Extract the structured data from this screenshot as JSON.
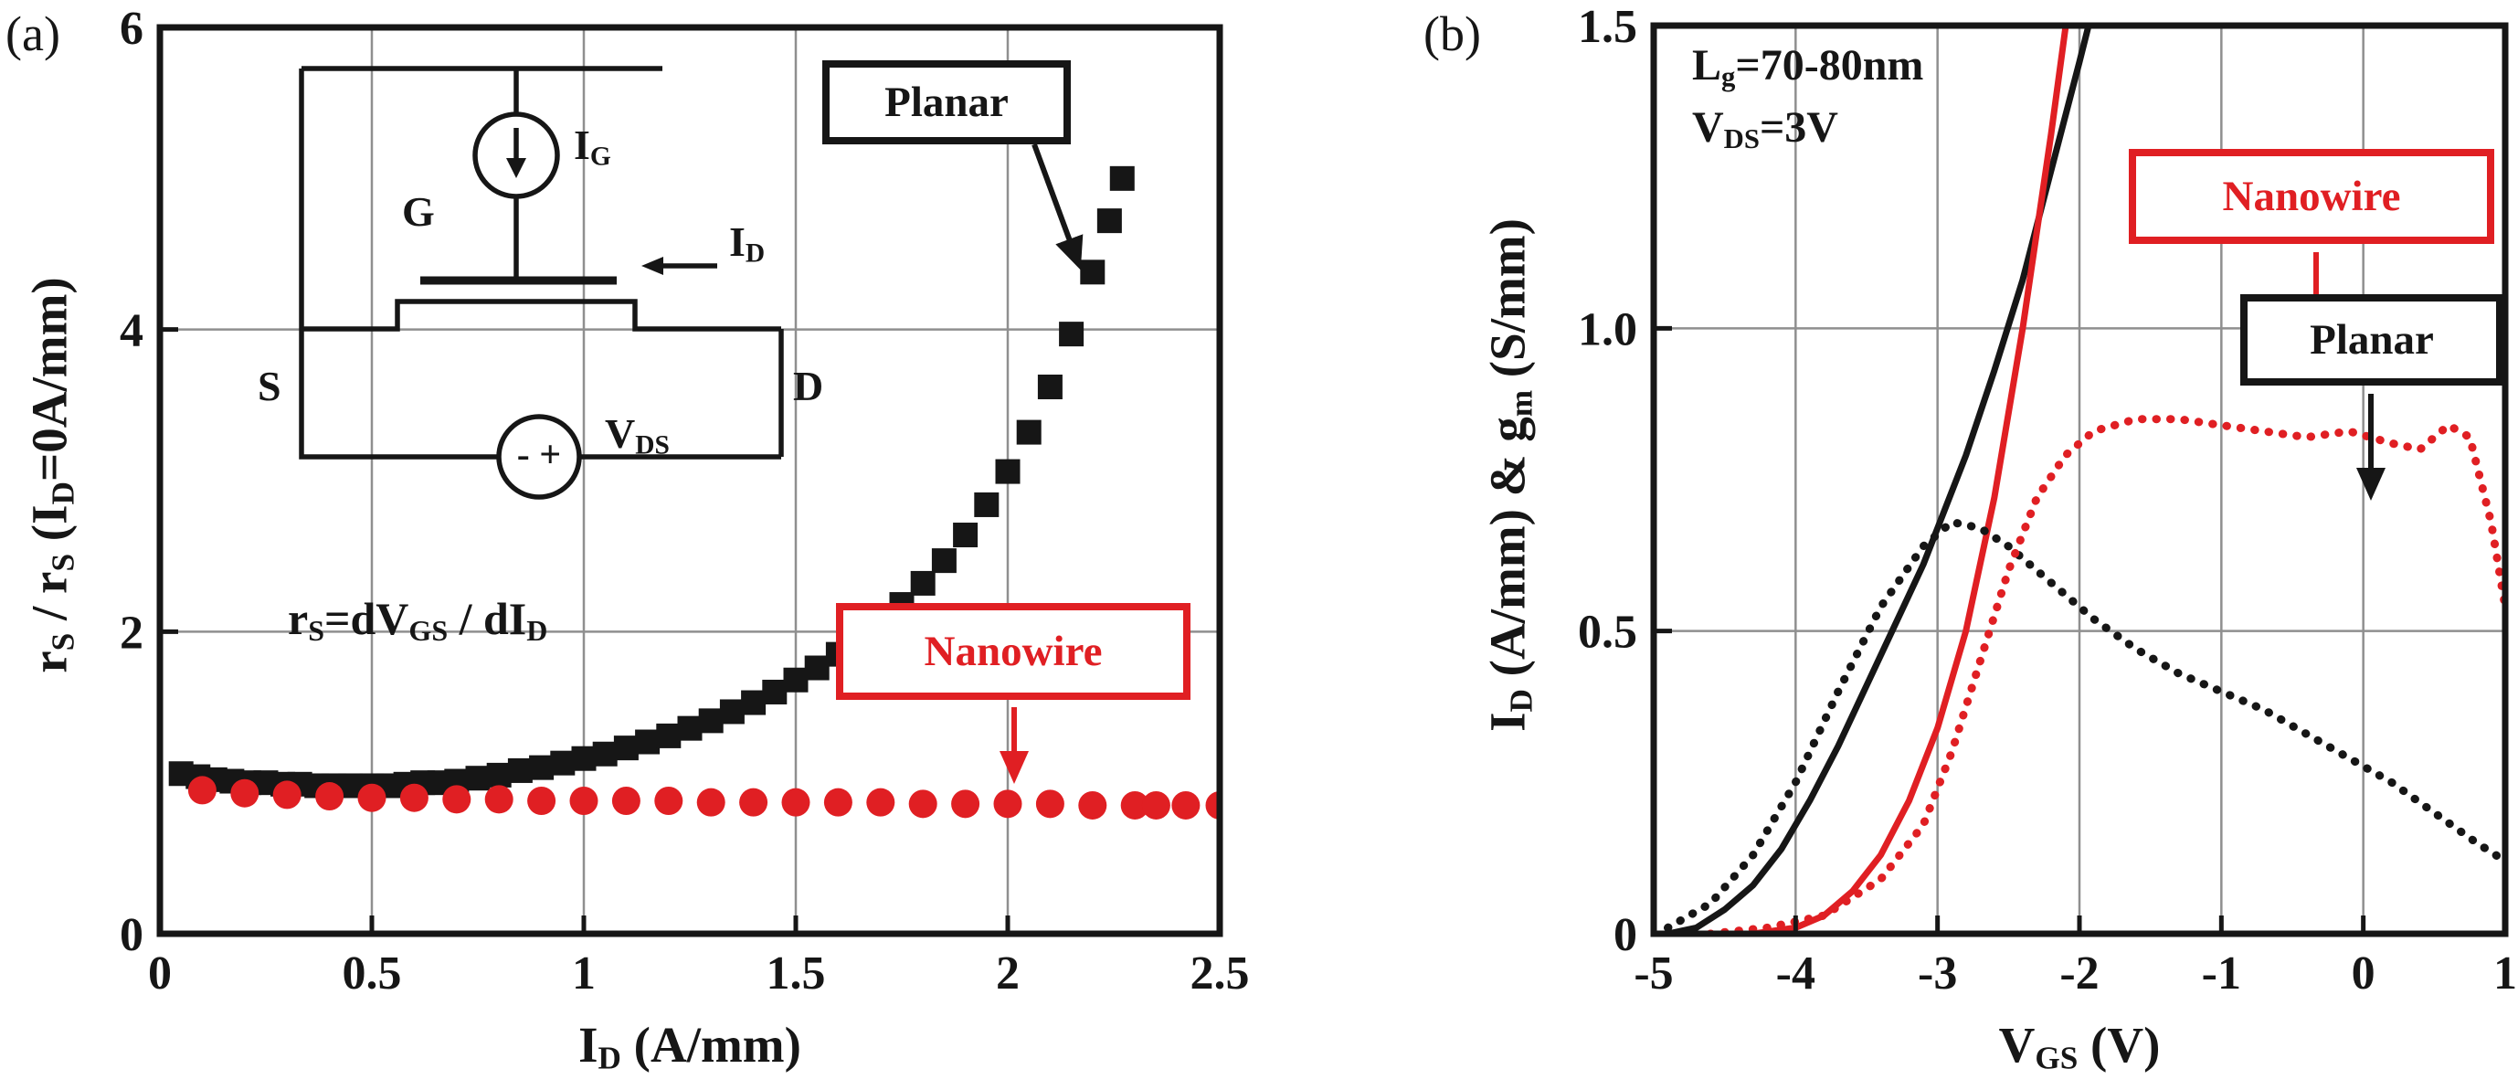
{
  "colors": {
    "black": "#161616",
    "red": "#e01f23",
    "grid": "#8f8f8f"
  },
  "figure": {
    "panel_a": {
      "tag": "(a)",
      "ylabel_parts": [
        [
          "r"
        ],
        [
          "S",
          "sub"
        ],
        [
          " / r"
        ],
        [
          "S",
          "sub"
        ],
        [
          " (I"
        ],
        [
          "D",
          "sub"
        ],
        [
          "=0A/mm)"
        ]
      ],
      "xlabel_parts": [
        [
          "I"
        ],
        [
          "D",
          "sub"
        ],
        [
          " (A/mm)"
        ]
      ],
      "equation_parts": [
        [
          "r"
        ],
        [
          "S",
          "sub"
        ],
        [
          "=dV"
        ],
        [
          "GS",
          "sub"
        ],
        [
          " / dI"
        ],
        [
          "D",
          "sub"
        ]
      ],
      "planar_label": "Planar",
      "nanowire_label": "Nanowire",
      "inset": {
        "ig_parts": [
          [
            "I"
          ],
          [
            "G",
            "sub"
          ]
        ],
        "gate_label": "G",
        "source_label": "S",
        "drain_label": "D",
        "id_parts": [
          [
            "I"
          ],
          [
            "D",
            "sub"
          ]
        ],
        "vds_parts": [
          [
            "V"
          ],
          [
            "DS",
            "sub"
          ]
        ],
        "polarity": "- +"
      }
    },
    "panel_b": {
      "tag": "(b)",
      "ylabel_parts": [
        [
          "I"
        ],
        [
          "D",
          "sub"
        ],
        [
          " (A/mm) & g"
        ],
        [
          "m",
          "sub"
        ],
        [
          " (S/mm)"
        ]
      ],
      "xlabel_parts": [
        [
          "V"
        ],
        [
          "GS",
          "sub"
        ],
        [
          " (V)"
        ]
      ],
      "ann1_parts": [
        [
          "L"
        ],
        [
          "g",
          "sub"
        ],
        [
          "=70-80nm"
        ]
      ],
      "ann2_parts": [
        [
          "V"
        ],
        [
          "DS",
          "sub"
        ],
        [
          "=3V"
        ]
      ],
      "planar_label": "Planar",
      "nanowire_label": "Nanowire"
    }
  },
  "chart_data": [
    {
      "type": "scatter",
      "title": "",
      "xlabel": "ID (A/mm)",
      "ylabel": "rS / rS (ID=0A/mm)",
      "xlim": [
        0,
        2.5
      ],
      "ylim": [
        0,
        6
      ],
      "xticks": [
        0,
        0.5,
        1,
        1.5,
        2,
        2.5
      ],
      "xtick_labels": [
        "0",
        "0.5",
        "1",
        "1.5",
        "2",
        "2.5"
      ],
      "yticks": [
        0,
        2,
        4,
        6
      ],
      "ytick_labels": [
        "0",
        "2",
        "4",
        "6"
      ],
      "grid": true,
      "annotation": "rS=dVGS / dID",
      "legend_position": "annotation-boxes",
      "series": [
        {
          "name": "Planar",
          "type": "scatter",
          "marker": "square",
          "color": "#161616",
          "size": 27,
          "points": [
            [
              0.05,
              1.06
            ],
            [
              0.09,
              1.04
            ],
            [
              0.13,
              1.02
            ],
            [
              0.17,
              1.01
            ],
            [
              0.21,
              1.0
            ],
            [
              0.25,
              1.0
            ],
            [
              0.29,
              0.99
            ],
            [
              0.33,
              0.99
            ],
            [
              0.37,
              0.98
            ],
            [
              0.41,
              0.98
            ],
            [
              0.45,
              0.98
            ],
            [
              0.5,
              0.98
            ],
            [
              0.54,
              0.98
            ],
            [
              0.58,
              0.99
            ],
            [
              0.62,
              1.0
            ],
            [
              0.66,
              1.0
            ],
            [
              0.7,
              1.01
            ],
            [
              0.75,
              1.03
            ],
            [
              0.8,
              1.05
            ],
            [
              0.85,
              1.08
            ],
            [
              0.9,
              1.1
            ],
            [
              0.95,
              1.13
            ],
            [
              1.0,
              1.16
            ],
            [
              1.05,
              1.19
            ],
            [
              1.1,
              1.23
            ],
            [
              1.15,
              1.27
            ],
            [
              1.2,
              1.31
            ],
            [
              1.25,
              1.36
            ],
            [
              1.3,
              1.41
            ],
            [
              1.35,
              1.47
            ],
            [
              1.4,
              1.53
            ],
            [
              1.45,
              1.6
            ],
            [
              1.5,
              1.68
            ],
            [
              1.55,
              1.76
            ],
            [
              1.6,
              1.85
            ],
            [
              1.65,
              1.95
            ],
            [
              1.7,
              2.06
            ],
            [
              1.75,
              2.18
            ],
            [
              1.8,
              2.32
            ],
            [
              1.85,
              2.47
            ],
            [
              1.9,
              2.64
            ],
            [
              1.95,
              2.84
            ],
            [
              2.0,
              3.06
            ],
            [
              2.05,
              3.32
            ],
            [
              2.1,
              3.62
            ],
            [
              2.15,
              3.97
            ],
            [
              2.2,
              4.38
            ],
            [
              2.24,
              4.72
            ],
            [
              2.27,
              5.0
            ]
          ]
        },
        {
          "name": "Nanowire",
          "type": "scatter",
          "marker": "circle",
          "color": "#e01f23",
          "size": 31,
          "points": [
            [
              0.1,
              0.95
            ],
            [
              0.2,
              0.93
            ],
            [
              0.3,
              0.92
            ],
            [
              0.4,
              0.91
            ],
            [
              0.5,
              0.9
            ],
            [
              0.6,
              0.9
            ],
            [
              0.7,
              0.89
            ],
            [
              0.8,
              0.89
            ],
            [
              0.9,
              0.88
            ],
            [
              1.0,
              0.88
            ],
            [
              1.1,
              0.88
            ],
            [
              1.2,
              0.88
            ],
            [
              1.3,
              0.87
            ],
            [
              1.4,
              0.87
            ],
            [
              1.5,
              0.87
            ],
            [
              1.6,
              0.87
            ],
            [
              1.7,
              0.87
            ],
            [
              1.8,
              0.86
            ],
            [
              1.9,
              0.86
            ],
            [
              2.0,
              0.86
            ],
            [
              2.1,
              0.86
            ],
            [
              2.2,
              0.85
            ],
            [
              2.3,
              0.85
            ],
            [
              2.35,
              0.85
            ],
            [
              2.42,
              0.85
            ],
            [
              2.5,
              0.85
            ]
          ]
        }
      ]
    },
    {
      "type": "line",
      "title": "",
      "xlabel": "VGS (V)",
      "ylabel": "ID (A/mm) & gm (S/mm)",
      "xlim": [
        -5,
        1
      ],
      "ylim": [
        0,
        1.5
      ],
      "xticks": [
        -5,
        -4,
        -3,
        -2,
        -1,
        0,
        1
      ],
      "xtick_labels": [
        "-5",
        "-4",
        "-3",
        "-2",
        "-1",
        "0",
        "1"
      ],
      "yticks": [
        0,
        0.5,
        1,
        1.5
      ],
      "ytick_labels": [
        "0",
        "0.5",
        "1.0",
        "1.5"
      ],
      "grid": true,
      "annotations": [
        "Lg=70-80nm",
        "VDS=3V"
      ],
      "series": [
        {
          "name": "ID Planar",
          "type": "line",
          "dash": "solid",
          "color": "#161616",
          "width": 7,
          "points": [
            [
              -4.9,
              0.0
            ],
            [
              -4.7,
              0.01
            ],
            [
              -4.5,
              0.04
            ],
            [
              -4.3,
              0.08
            ],
            [
              -4.1,
              0.14
            ],
            [
              -3.9,
              0.22
            ],
            [
              -3.7,
              0.31
            ],
            [
              -3.5,
              0.41
            ],
            [
              -3.3,
              0.51
            ],
            [
              -3.1,
              0.61
            ],
            [
              -3.0,
              0.67
            ],
            [
              -2.8,
              0.79
            ],
            [
              -2.6,
              0.93
            ],
            [
              -2.4,
              1.08
            ],
            [
              -2.2,
              1.26
            ],
            [
              -2.0,
              1.44
            ],
            [
              -1.85,
              1.58
            ]
          ]
        },
        {
          "name": "ID Nanowire",
          "type": "line",
          "dash": "solid",
          "color": "#e01f23",
          "width": 7,
          "points": [
            [
              -4.3,
              0.0
            ],
            [
              -4.0,
              0.01
            ],
            [
              -3.8,
              0.03
            ],
            [
              -3.6,
              0.07
            ],
            [
              -3.4,
              0.13
            ],
            [
              -3.2,
              0.22
            ],
            [
              -3.0,
              0.34
            ],
            [
              -2.8,
              0.5
            ],
            [
              -2.6,
              0.72
            ],
            [
              -2.4,
              1.0
            ],
            [
              -2.2,
              1.32
            ],
            [
              -2.05,
              1.58
            ]
          ]
        },
        {
          "name": "gm Planar",
          "type": "line",
          "dash": "dotted",
          "color": "#161616",
          "width": 7,
          "points": [
            [
              -4.9,
              0.01
            ],
            [
              -4.6,
              0.05
            ],
            [
              -4.3,
              0.13
            ],
            [
              -4.0,
              0.25
            ],
            [
              -3.7,
              0.4
            ],
            [
              -3.4,
              0.54
            ],
            [
              -3.1,
              0.64
            ],
            [
              -2.9,
              0.68
            ],
            [
              -2.7,
              0.67
            ],
            [
              -2.5,
              0.64
            ],
            [
              -2.2,
              0.58
            ],
            [
              -1.9,
              0.52
            ],
            [
              -1.6,
              0.47
            ],
            [
              -1.3,
              0.43
            ],
            [
              -1.0,
              0.4
            ],
            [
              -0.7,
              0.37
            ],
            [
              -0.4,
              0.33
            ],
            [
              -0.1,
              0.29
            ],
            [
              0.2,
              0.25
            ],
            [
              0.5,
              0.2
            ],
            [
              0.8,
              0.15
            ],
            [
              1.0,
              0.12
            ]
          ]
        },
        {
          "name": "gm Nanowire",
          "type": "line",
          "dash": "dotted",
          "color": "#e01f23",
          "width": 7,
          "points": [
            [
              -4.6,
              0.0
            ],
            [
              -4.2,
              0.01
            ],
            [
              -3.8,
              0.03
            ],
            [
              -3.4,
              0.09
            ],
            [
              -3.1,
              0.18
            ],
            [
              -2.9,
              0.3
            ],
            [
              -2.7,
              0.45
            ],
            [
              -2.5,
              0.6
            ],
            [
              -2.3,
              0.72
            ],
            [
              -2.1,
              0.79
            ],
            [
              -1.9,
              0.83
            ],
            [
              -1.6,
              0.85
            ],
            [
              -1.3,
              0.85
            ],
            [
              -1.0,
              0.84
            ],
            [
              -0.7,
              0.83
            ],
            [
              -0.4,
              0.82
            ],
            [
              -0.1,
              0.83
            ],
            [
              0.2,
              0.81
            ],
            [
              0.4,
              0.8
            ],
            [
              0.6,
              0.84
            ],
            [
              0.75,
              0.82
            ],
            [
              0.9,
              0.68
            ],
            [
              1.0,
              0.54
            ]
          ]
        }
      ]
    }
  ]
}
